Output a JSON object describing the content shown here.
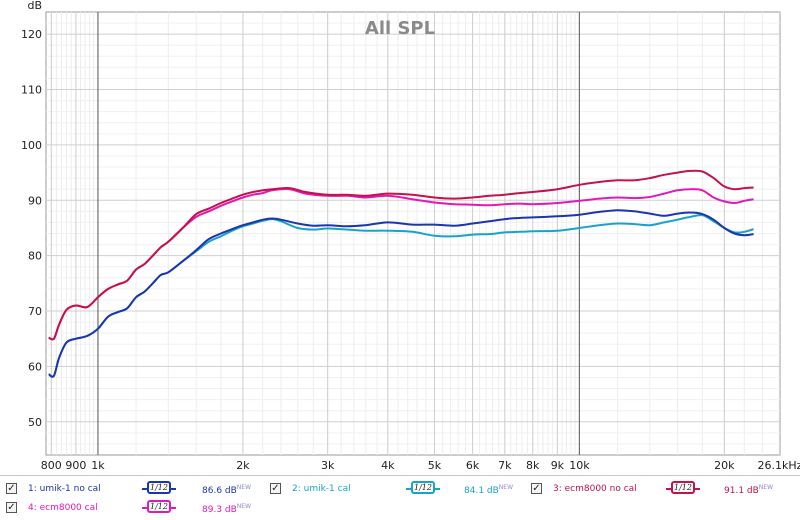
{
  "chart_data": {
    "type": "line",
    "title": "All SPL",
    "ylabel": "dB",
    "x_scale": "log",
    "xlim": [
      780,
      26100
    ],
    "ylim": [
      44,
      124
    ],
    "x_ticks": [
      {
        "value": 800,
        "label": "800"
      },
      {
        "value": 900,
        "label": "900"
      },
      {
        "value": 1000,
        "label": "1k"
      },
      {
        "value": 2000,
        "label": "2k"
      },
      {
        "value": 3000,
        "label": "3k"
      },
      {
        "value": 4000,
        "label": "4k"
      },
      {
        "value": 5000,
        "label": "5k"
      },
      {
        "value": 6000,
        "label": "6k"
      },
      {
        "value": 7000,
        "label": "7k"
      },
      {
        "value": 8000,
        "label": "8k"
      },
      {
        "value": 9000,
        "label": "9k"
      },
      {
        "value": 10000,
        "label": "10k"
      },
      {
        "value": 20000,
        "label": "20k"
      },
      {
        "value": 26100,
        "label": "26.1kHz"
      }
    ],
    "y_ticks": [
      50,
      60,
      70,
      80,
      90,
      100,
      110,
      120
    ],
    "grid": true,
    "series": [
      {
        "name": "1: umik-1 no cal",
        "color": "#1c35b0",
        "points": [
          [
            790,
            58.6
          ],
          [
            810,
            58.3
          ],
          [
            830,
            61.5
          ],
          [
            860,
            64.3
          ],
          [
            900,
            65.0
          ],
          [
            950,
            65.5
          ],
          [
            1000,
            66.8
          ],
          [
            1050,
            69.0
          ],
          [
            1100,
            69.8
          ],
          [
            1150,
            70.5
          ],
          [
            1200,
            72.5
          ],
          [
            1250,
            73.5
          ],
          [
            1300,
            75.0
          ],
          [
            1350,
            76.5
          ],
          [
            1400,
            77.0
          ],
          [
            1500,
            79.0
          ],
          [
            1600,
            81.0
          ],
          [
            1700,
            83.0
          ],
          [
            1800,
            84.0
          ],
          [
            1900,
            84.8
          ],
          [
            2000,
            85.5
          ],
          [
            2100,
            86.0
          ],
          [
            2200,
            86.5
          ],
          [
            2300,
            86.7
          ],
          [
            2400,
            86.5
          ],
          [
            2600,
            85.8
          ],
          [
            2800,
            85.4
          ],
          [
            3000,
            85.5
          ],
          [
            3300,
            85.3
          ],
          [
            3600,
            85.5
          ],
          [
            4000,
            86.0
          ],
          [
            4500,
            85.6
          ],
          [
            5000,
            85.6
          ],
          [
            5500,
            85.4
          ],
          [
            6000,
            85.8
          ],
          [
            6500,
            86.2
          ],
          [
            7000,
            86.6
          ],
          [
            7500,
            86.8
          ],
          [
            8000,
            86.9
          ],
          [
            9000,
            87.1
          ],
          [
            10000,
            87.4
          ],
          [
            11000,
            87.9
          ],
          [
            12000,
            88.2
          ],
          [
            13000,
            88.0
          ],
          [
            14000,
            87.6
          ],
          [
            15000,
            87.2
          ],
          [
            16000,
            87.6
          ],
          [
            17000,
            87.8
          ],
          [
            18000,
            87.5
          ],
          [
            19000,
            86.5
          ],
          [
            20000,
            85.0
          ],
          [
            21000,
            84.0
          ],
          [
            22000,
            83.7
          ],
          [
            23000,
            83.9
          ]
        ]
      },
      {
        "name": "2: umik-1 cal",
        "color": "#1aa3c8",
        "points": [
          [
            790,
            58.6
          ],
          [
            810,
            58.3
          ],
          [
            830,
            61.5
          ],
          [
            860,
            64.3
          ],
          [
            900,
            65.0
          ],
          [
            950,
            65.5
          ],
          [
            1000,
            66.8
          ],
          [
            1050,
            69.0
          ],
          [
            1100,
            69.8
          ],
          [
            1150,
            70.5
          ],
          [
            1200,
            72.5
          ],
          [
            1250,
            73.5
          ],
          [
            1300,
            75.0
          ],
          [
            1350,
            76.5
          ],
          [
            1400,
            77.0
          ],
          [
            1500,
            79.0
          ],
          [
            1600,
            80.8
          ],
          [
            1700,
            82.5
          ],
          [
            1800,
            83.5
          ],
          [
            1900,
            84.5
          ],
          [
            2000,
            85.3
          ],
          [
            2100,
            85.8
          ],
          [
            2200,
            86.3
          ],
          [
            2300,
            86.6
          ],
          [
            2400,
            86.2
          ],
          [
            2600,
            85.0
          ],
          [
            2800,
            84.7
          ],
          [
            3000,
            84.9
          ],
          [
            3300,
            84.7
          ],
          [
            3600,
            84.5
          ],
          [
            4000,
            84.5
          ],
          [
            4500,
            84.3
          ],
          [
            5000,
            83.6
          ],
          [
            5500,
            83.5
          ],
          [
            6000,
            83.8
          ],
          [
            6500,
            83.9
          ],
          [
            7000,
            84.2
          ],
          [
            7500,
            84.3
          ],
          [
            8000,
            84.4
          ],
          [
            9000,
            84.5
          ],
          [
            10000,
            85.0
          ],
          [
            11000,
            85.5
          ],
          [
            12000,
            85.8
          ],
          [
            13000,
            85.7
          ],
          [
            14000,
            85.5
          ],
          [
            15000,
            86.0
          ],
          [
            16000,
            86.5
          ],
          [
            17000,
            87.0
          ],
          [
            18000,
            87.3
          ],
          [
            19000,
            86.2
          ],
          [
            20000,
            85.0
          ],
          [
            21000,
            84.2
          ],
          [
            22000,
            84.3
          ],
          [
            23000,
            84.8
          ]
        ]
      },
      {
        "name": "3: ecm8000 no cal",
        "color": "#c4124a",
        "points": [
          [
            790,
            65.2
          ],
          [
            810,
            65.0
          ],
          [
            830,
            67.5
          ],
          [
            860,
            70.2
          ],
          [
            900,
            71.0
          ],
          [
            950,
            70.7
          ],
          [
            1000,
            72.5
          ],
          [
            1050,
            74.0
          ],
          [
            1100,
            74.8
          ],
          [
            1150,
            75.5
          ],
          [
            1200,
            77.5
          ],
          [
            1250,
            78.5
          ],
          [
            1300,
            80.0
          ],
          [
            1350,
            81.5
          ],
          [
            1400,
            82.5
          ],
          [
            1500,
            85.0
          ],
          [
            1600,
            87.5
          ],
          [
            1700,
            88.5
          ],
          [
            1800,
            89.5
          ],
          [
            1900,
            90.3
          ],
          [
            2000,
            91.0
          ],
          [
            2100,
            91.5
          ],
          [
            2200,
            91.8
          ],
          [
            2300,
            92.0
          ],
          [
            2500,
            92.2
          ],
          [
            2700,
            91.5
          ],
          [
            3000,
            91.0
          ],
          [
            3300,
            91.0
          ],
          [
            3600,
            90.8
          ],
          [
            4000,
            91.2
          ],
          [
            4500,
            91.0
          ],
          [
            5000,
            90.5
          ],
          [
            5500,
            90.3
          ],
          [
            6000,
            90.5
          ],
          [
            6500,
            90.8
          ],
          [
            7000,
            91.0
          ],
          [
            7500,
            91.3
          ],
          [
            8000,
            91.5
          ],
          [
            9000,
            92.0
          ],
          [
            10000,
            92.8
          ],
          [
            11000,
            93.3
          ],
          [
            12000,
            93.6
          ],
          [
            13000,
            93.6
          ],
          [
            14000,
            94.0
          ],
          [
            15000,
            94.6
          ],
          [
            16000,
            95.0
          ],
          [
            17000,
            95.3
          ],
          [
            18000,
            95.2
          ],
          [
            19000,
            94.0
          ],
          [
            20000,
            92.5
          ],
          [
            21000,
            92.0
          ],
          [
            22000,
            92.2
          ],
          [
            23000,
            92.3
          ]
        ]
      },
      {
        "name": "4: ecm8000 cal",
        "color": "#e01ab8",
        "points": [
          [
            790,
            65.2
          ],
          [
            810,
            65.0
          ],
          [
            830,
            67.5
          ],
          [
            860,
            70.2
          ],
          [
            900,
            71.0
          ],
          [
            950,
            70.7
          ],
          [
            1000,
            72.5
          ],
          [
            1050,
            74.0
          ],
          [
            1100,
            74.8
          ],
          [
            1150,
            75.5
          ],
          [
            1200,
            77.5
          ],
          [
            1250,
            78.5
          ],
          [
            1300,
            80.0
          ],
          [
            1350,
            81.5
          ],
          [
            1400,
            82.5
          ],
          [
            1500,
            85.0
          ],
          [
            1600,
            87.0
          ],
          [
            1700,
            88.0
          ],
          [
            1800,
            89.0
          ],
          [
            1900,
            89.8
          ],
          [
            2000,
            90.5
          ],
          [
            2100,
            91.0
          ],
          [
            2200,
            91.3
          ],
          [
            2300,
            91.8
          ],
          [
            2500,
            92.0
          ],
          [
            2700,
            91.2
          ],
          [
            3000,
            90.8
          ],
          [
            3300,
            90.8
          ],
          [
            3600,
            90.5
          ],
          [
            4000,
            90.8
          ],
          [
            4500,
            90.2
          ],
          [
            5000,
            89.6
          ],
          [
            5500,
            89.3
          ],
          [
            6000,
            89.2
          ],
          [
            6500,
            89.1
          ],
          [
            7000,
            89.3
          ],
          [
            7500,
            89.4
          ],
          [
            8000,
            89.3
          ],
          [
            9000,
            89.5
          ],
          [
            10000,
            89.9
          ],
          [
            11000,
            90.3
          ],
          [
            12000,
            90.5
          ],
          [
            13000,
            90.4
          ],
          [
            14000,
            90.6
          ],
          [
            15000,
            91.2
          ],
          [
            16000,
            91.8
          ],
          [
            17000,
            92.0
          ],
          [
            18000,
            91.8
          ],
          [
            19000,
            90.5
          ],
          [
            20000,
            89.8
          ],
          [
            21000,
            89.5
          ],
          [
            22000,
            89.9
          ],
          [
            23000,
            90.2
          ]
        ]
      }
    ]
  },
  "legend": [
    {
      "checked": true,
      "name": "1: umik-1 no cal",
      "smoothing": "1/12",
      "value": "86.6 dB",
      "new_tag": "NEW",
      "color": "#1c35b0"
    },
    {
      "checked": true,
      "name": "2: umik-1 cal",
      "smoothing": "1/12",
      "value": "84.1 dB",
      "new_tag": "NEW",
      "color": "#1aa3c8"
    },
    {
      "checked": true,
      "name": "3: ecm8000 no cal",
      "smoothing": "1/12",
      "value": "91.1 dB",
      "new_tag": "NEW",
      "color": "#c4124a"
    },
    {
      "checked": true,
      "name": "4: ecm8000 cal",
      "smoothing": "1/12",
      "value": "89.3 dB",
      "new_tag": "NEW",
      "color": "#e01ab8"
    }
  ]
}
